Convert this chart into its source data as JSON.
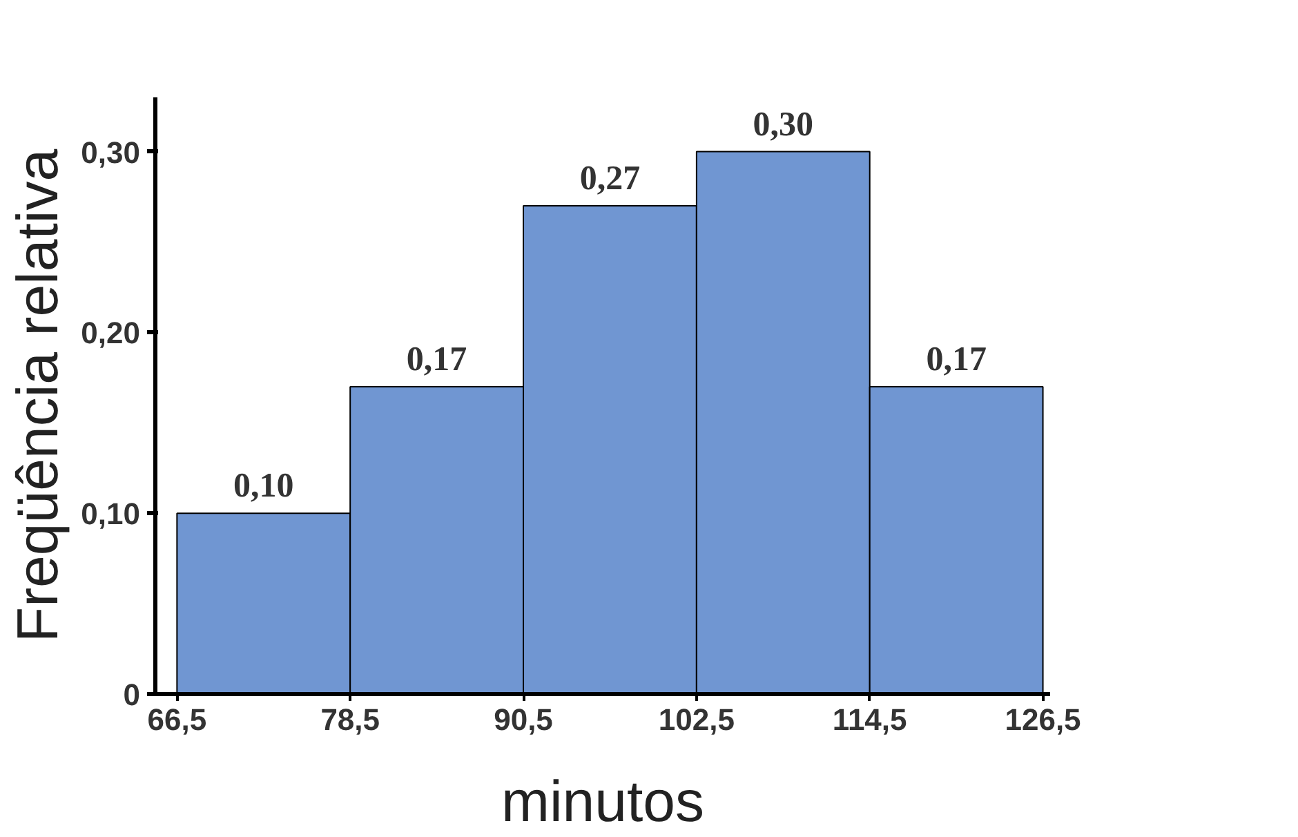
{
  "chart_data": {
    "type": "histogram",
    "xlabel": "minutos",
    "ylabel": "Freqüência relativa",
    "bins": [
      66.5,
      78.5,
      90.5,
      102.5,
      114.5,
      126.5
    ],
    "values": [
      0.1,
      0.17,
      0.27,
      0.3,
      0.17
    ],
    "value_labels": [
      "0,10",
      "0,17",
      "0,27",
      "0,30",
      "0,17"
    ],
    "color": "#7096d2",
    "xlim": [
      65,
      127
    ],
    "ylim": [
      0,
      0.33
    ],
    "xticks": [
      {
        "value": 66.5,
        "label": "66,5"
      },
      {
        "value": 78.5,
        "label": "78,5"
      },
      {
        "value": 90.5,
        "label": "90,5"
      },
      {
        "value": 102.5,
        "label": "102,5"
      },
      {
        "value": 114.5,
        "label": "114,5"
      },
      {
        "value": 126.5,
        "label": "126,5"
      }
    ],
    "yticks": [
      0,
      {
        "value": 0.1,
        "label": "0,10"
      },
      {
        "value": 0.2,
        "label": "0,20"
      },
      {
        "value": 0.3,
        "label": "0,30"
      }
    ],
    "grid": false
  }
}
